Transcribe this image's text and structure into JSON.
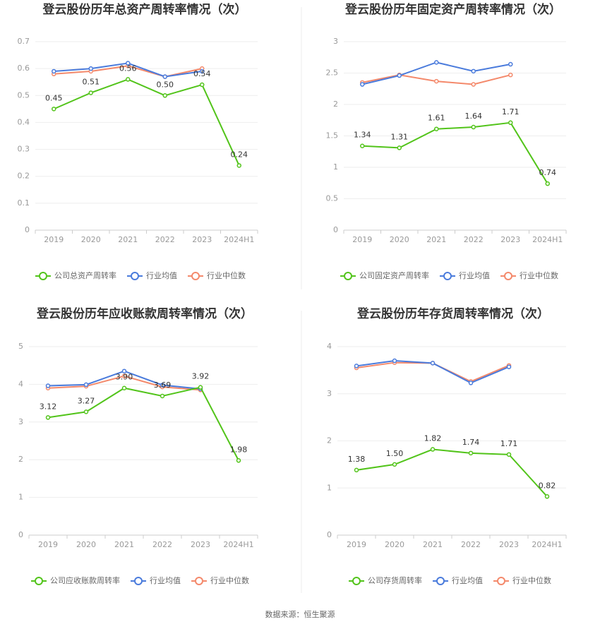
{
  "chart_data": [
    {
      "type": "line",
      "title": "登云股份历年总资产周转率情况（次）",
      "categories": [
        "2019",
        "2020",
        "2021",
        "2022",
        "2023",
        "2024H1"
      ],
      "ylim": [
        0,
        0.7
      ],
      "yticks": [
        0,
        0.1,
        0.2,
        0.3,
        0.4,
        0.5,
        0.6,
        0.7
      ],
      "grid": true,
      "legend": "bottom",
      "series": [
        {
          "name": "公司总资产周转率",
          "color": "#52c41a",
          "values": [
            0.45,
            0.51,
            0.56,
            0.5,
            0.54,
            0.24
          ],
          "value_labels": [
            "0.45",
            "0.51",
            "0.56",
            "0.50",
            "0.54",
            "0.24"
          ]
        },
        {
          "name": "行业均值",
          "color": "#4a7bdc",
          "values": [
            0.59,
            0.6,
            0.62,
            0.57,
            0.59,
            null
          ]
        },
        {
          "name": "行业中位数",
          "color": "#f4896b",
          "values": [
            0.58,
            0.59,
            0.61,
            0.57,
            0.6,
            null
          ]
        }
      ]
    },
    {
      "type": "line",
      "title": "登云股份历年固定资产周转率情况（次）",
      "categories": [
        "2019",
        "2020",
        "2021",
        "2022",
        "2023",
        "2024H1"
      ],
      "ylim": [
        0,
        3
      ],
      "yticks": [
        0,
        0.5,
        1,
        1.5,
        2,
        2.5,
        3
      ],
      "grid": true,
      "legend": "bottom",
      "series": [
        {
          "name": "公司固定资产周转率",
          "color": "#52c41a",
          "values": [
            1.34,
            1.31,
            1.61,
            1.64,
            1.71,
            0.74
          ],
          "value_labels": [
            "1.34",
            "1.31",
            "1.61",
            "1.64",
            "1.71",
            "0.74"
          ]
        },
        {
          "name": "行业均值",
          "color": "#4a7bdc",
          "values": [
            2.32,
            2.46,
            2.67,
            2.53,
            2.64,
            null
          ]
        },
        {
          "name": "行业中位数",
          "color": "#f4896b",
          "values": [
            2.35,
            2.47,
            2.37,
            2.32,
            2.47,
            null
          ]
        }
      ]
    },
    {
      "type": "line",
      "title": "登云股份历年应收账款周转率情况（次）",
      "categories": [
        "2019",
        "2020",
        "2021",
        "2022",
        "2023",
        "2024H1"
      ],
      "ylim": [
        0,
        5
      ],
      "yticks": [
        0,
        1,
        2,
        3,
        4,
        5
      ],
      "grid": true,
      "legend": "bottom",
      "series": [
        {
          "name": "公司应收账款周转率",
          "color": "#52c41a",
          "values": [
            3.12,
            3.27,
            3.9,
            3.69,
            3.92,
            1.98
          ],
          "value_labels": [
            "3.12",
            "3.27",
            "3.90",
            "3.69",
            "3.92",
            "1.98"
          ]
        },
        {
          "name": "行业均值",
          "color": "#4a7bdc",
          "values": [
            3.96,
            3.99,
            4.35,
            3.98,
            3.88,
            null
          ]
        },
        {
          "name": "行业中位数",
          "color": "#f4896b",
          "values": [
            3.9,
            3.95,
            4.22,
            3.93,
            3.85,
            null
          ]
        }
      ]
    },
    {
      "type": "line",
      "title": "登云股份历年存货周转率情况（次）",
      "categories": [
        "2019",
        "2020",
        "2021",
        "2022",
        "2023",
        "2024H1"
      ],
      "ylim": [
        0,
        4
      ],
      "yticks": [
        0,
        1,
        2,
        3,
        4
      ],
      "grid": true,
      "legend": "bottom",
      "series": [
        {
          "name": "公司存货周转率",
          "color": "#52c41a",
          "values": [
            1.38,
            1.5,
            1.82,
            1.74,
            1.71,
            0.82
          ],
          "value_labels": [
            "1.38",
            "1.50",
            "1.82",
            "1.74",
            "1.71",
            "0.82"
          ]
        },
        {
          "name": "行业均值",
          "color": "#4a7bdc",
          "values": [
            3.59,
            3.7,
            3.65,
            3.23,
            3.57,
            null
          ]
        },
        {
          "name": "行业中位数",
          "color": "#f4896b",
          "values": [
            3.55,
            3.66,
            3.65,
            3.26,
            3.6,
            null
          ]
        }
      ]
    }
  ],
  "source": "数据来源：恒生聚源"
}
